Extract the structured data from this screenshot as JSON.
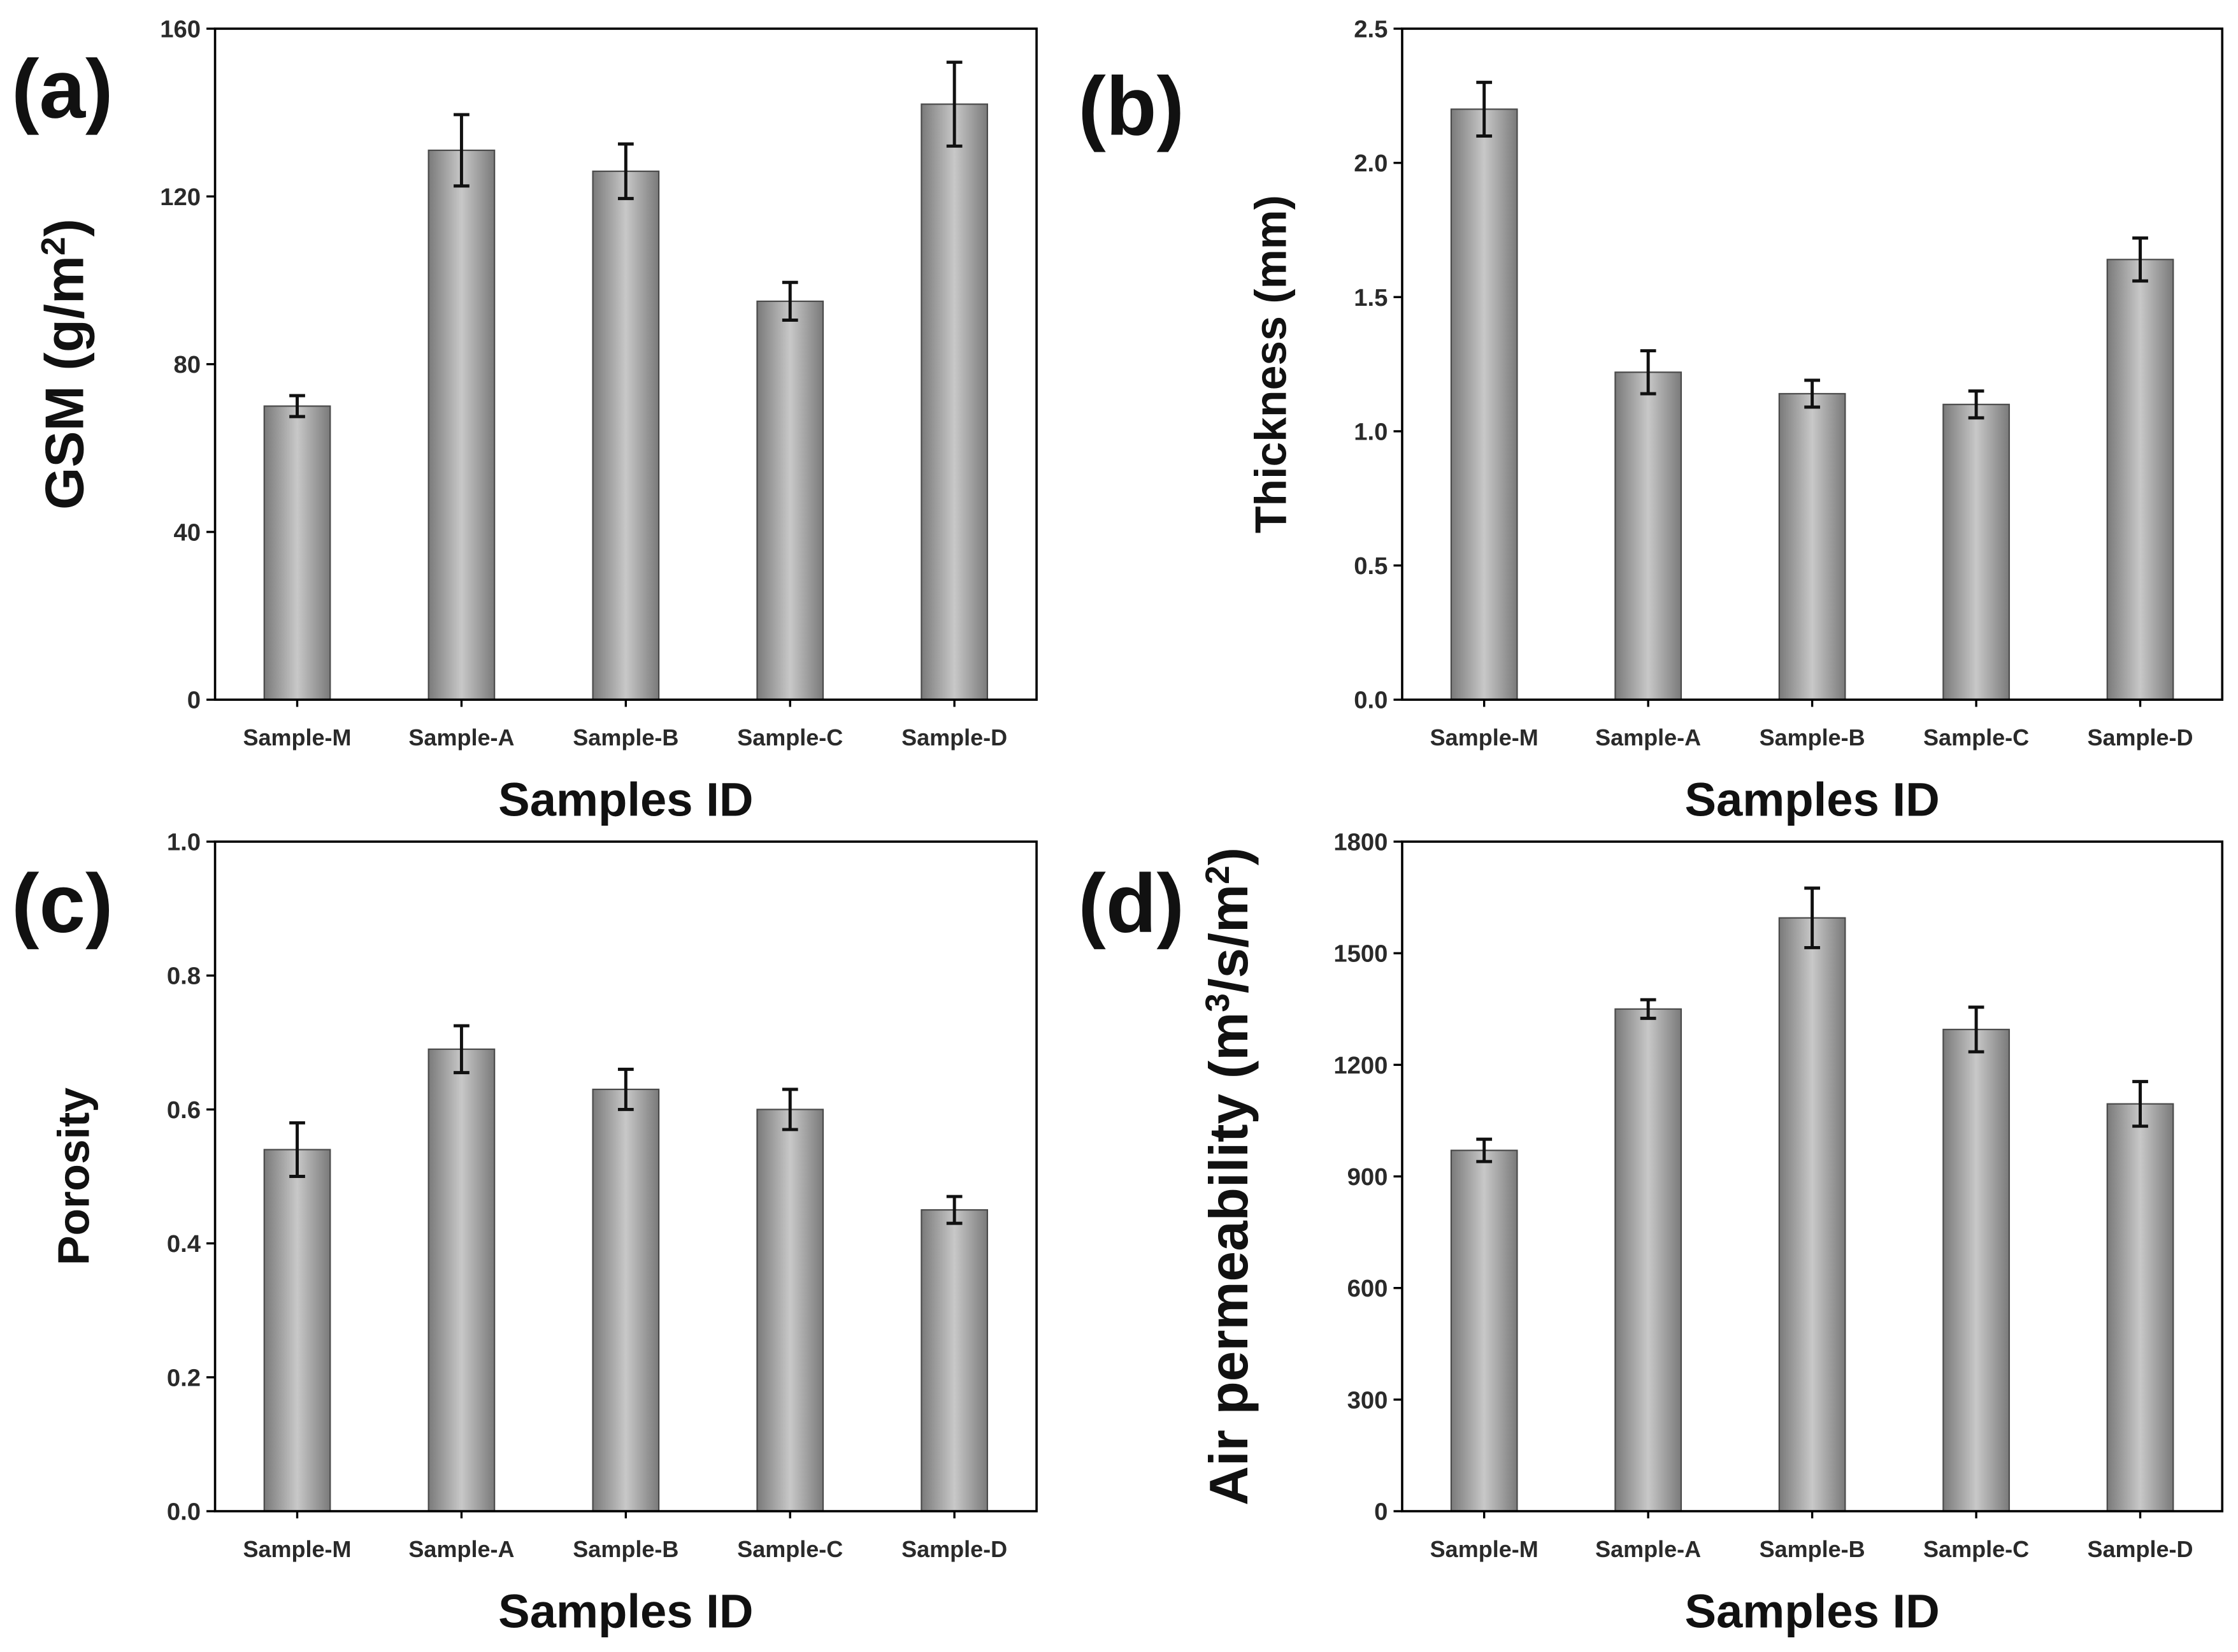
{
  "chart_data": [
    {
      "panel": "(a)",
      "type": "bar",
      "categories": [
        "Sample-M",
        "Sample-A",
        "Sample-B",
        "Sample-C",
        "Sample-D"
      ],
      "values": [
        70,
        131,
        126,
        95,
        142
      ],
      "errors": [
        2.5,
        8.5,
        6.5,
        4.5,
        10
      ],
      "xlabel": "Samples ID",
      "ylabel_main": "GSM (g/m",
      "ylabel_sup": "2",
      "ylabel_tail": ")",
      "ylim": [
        0,
        160
      ],
      "yticks": [
        0,
        40,
        80,
        120,
        160
      ],
      "ytick_labels": [
        "0",
        "40",
        "80",
        "120",
        "160"
      ]
    },
    {
      "panel": "(b)",
      "type": "bar",
      "categories": [
        "Sample-M",
        "Sample-A",
        "Sample-B",
        "Sample-C",
        "Sample-D"
      ],
      "values": [
        2.2,
        1.22,
        1.14,
        1.1,
        1.64
      ],
      "errors": [
        0.1,
        0.08,
        0.05,
        0.05,
        0.08
      ],
      "xlabel": "Samples ID",
      "ylabel_main": "Thickness (mm)",
      "ylabel_sup": "",
      "ylabel_tail": "",
      "ylim": [
        0,
        2.5
      ],
      "yticks": [
        0,
        0.5,
        1.0,
        1.5,
        2.0,
        2.5
      ],
      "ytick_labels": [
        "0.0",
        "0.5",
        "1.0",
        "1.5",
        "2.0",
        "2.5"
      ]
    },
    {
      "panel": "(c)",
      "type": "bar",
      "categories": [
        "Sample-M",
        "Sample-A",
        "Sample-B",
        "Sample-C",
        "Sample-D"
      ],
      "values": [
        0.54,
        0.69,
        0.63,
        0.6,
        0.45
      ],
      "errors": [
        0.04,
        0.035,
        0.03,
        0.03,
        0.02
      ],
      "xlabel": "Samples ID",
      "ylabel_main": "Porosity",
      "ylabel_sup": "",
      "ylabel_tail": "",
      "ylim": [
        0,
        1.0
      ],
      "yticks": [
        0,
        0.2,
        0.4,
        0.6,
        0.8,
        1.0
      ],
      "ytick_labels": [
        "0.0",
        "0.2",
        "0.4",
        "0.6",
        "0.8",
        "1.0"
      ]
    },
    {
      "panel": "(d)",
      "type": "bar",
      "categories": [
        "Sample-M",
        "Sample-A",
        "Sample-B",
        "Sample-C",
        "Sample-D"
      ],
      "values": [
        970,
        1350,
        1595,
        1295,
        1095
      ],
      "errors": [
        30,
        25,
        80,
        60,
        60
      ],
      "xlabel": "Samples ID",
      "ylabel_main": "Air permeability (m",
      "ylabel_sup": "3",
      "ylabel_tail": "/s/m",
      "ylabel_sup2": "2",
      "ylabel_tail2": ")",
      "ylim": [
        0,
        1800
      ],
      "yticks": [
        0,
        300,
        600,
        900,
        1200,
        1500,
        1800
      ],
      "ytick_labels": [
        "0",
        "300",
        "600",
        "900",
        "1200",
        "1500",
        "1800"
      ]
    }
  ]
}
